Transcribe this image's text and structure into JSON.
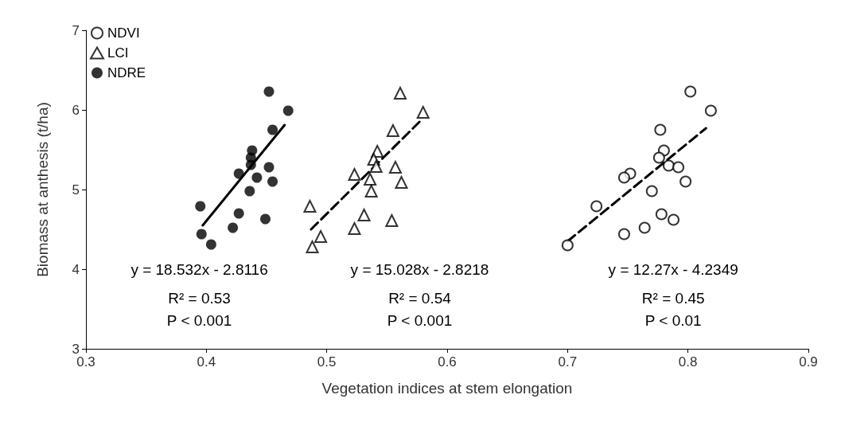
{
  "chart_data": {
    "type": "scatter",
    "xlabel": "Vegetation indices at stem elongation",
    "ylabel": "Biomass at anthesis (t/ha)",
    "xlim": [
      0.3,
      0.9
    ],
    "xticks": [
      0.3,
      0.4,
      0.5,
      0.6,
      0.7,
      0.8,
      0.9
    ],
    "ylim": [
      3,
      7
    ],
    "yticks": [
      3,
      4,
      5,
      6,
      7
    ],
    "grid": false,
    "legend": "top left",
    "series": [
      {
        "name": "NDVI",
        "color": "#000000",
        "marker": "circle",
        "x": [
          0.802,
          0.819,
          0.777,
          0.78,
          0.776,
          0.784,
          0.792,
          0.752,
          0.747,
          0.798,
          0.77,
          0.724,
          0.778,
          0.788,
          0.764,
          0.747,
          0.7
        ],
        "values": [
          6.23,
          5.99,
          5.75,
          5.49,
          5.4,
          5.3,
          5.28,
          5.2,
          5.15,
          5.1,
          4.98,
          4.79,
          4.69,
          4.62,
          4.52,
          4.44,
          4.3
        ]
      },
      {
        "name": "LCI",
        "color": "#000000",
        "marker": "triangle",
        "x": [
          0.561,
          0.58,
          0.555,
          0.542,
          0.539,
          0.541,
          0.557,
          0.523,
          0.536,
          0.562,
          0.537,
          0.486,
          0.531,
          0.523,
          0.554,
          0.495,
          0.488
        ],
        "values": [
          6.21,
          5.97,
          5.74,
          5.48,
          5.38,
          5.29,
          5.28,
          5.19,
          5.13,
          5.09,
          4.98,
          4.79,
          4.68,
          4.51,
          4.61,
          4.41,
          4.28
        ]
      },
      {
        "name": "NDRE",
        "color": "#000000",
        "marker": "circle",
        "x": [
          0.452,
          0.468,
          0.455,
          0.438,
          0.437,
          0.437,
          0.452,
          0.427,
          0.442,
          0.455,
          0.436,
          0.395,
          0.427,
          0.422,
          0.449,
          0.396,
          0.404
        ],
        "values": [
          6.23,
          5.99,
          5.75,
          5.49,
          5.4,
          5.31,
          5.28,
          5.2,
          5.15,
          5.1,
          4.98,
          4.79,
          4.7,
          4.52,
          4.63,
          4.44,
          4.31
        ]
      },
      {
        "type": "line",
        "color": "#000000",
        "line_style": "dashed",
        "x": [
          0.7,
          0.815
        ],
        "values": [
          4.35,
          5.77
        ]
      },
      {
        "type": "line",
        "color": "#000000",
        "line_style": "dashed",
        "x": [
          0.487,
          0.577
        ],
        "values": [
          4.5,
          5.85
        ]
      },
      {
        "type": "line",
        "color": "#000000",
        "line_style": "solid",
        "x": [
          0.397,
          0.465
        ],
        "values": [
          4.55,
          5.81
        ]
      }
    ],
    "annotations": [
      "y = 18.532x - 2.8116",
      "R² = 0.53",
      "P < 0.001",
      "y = 15.028x - 2.8218",
      "R² = 0.54",
      "P < 0.001",
      "y = 12.27x - 4.2349",
      "R² = 0.45",
      "P < 0.01"
    ]
  }
}
